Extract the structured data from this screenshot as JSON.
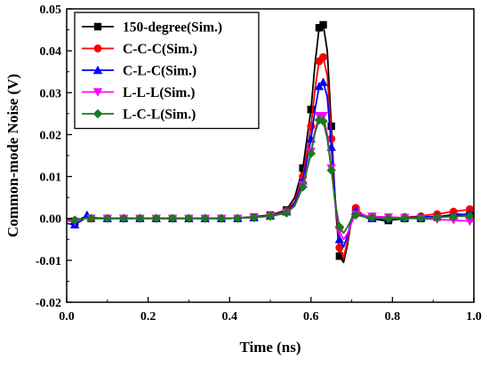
{
  "chart_data": {
    "type": "line",
    "title": "",
    "xlabel": "Time (ns)",
    "ylabel": "Common-mode Noise (V)",
    "xlim": [
      0.0,
      1.0
    ],
    "ylim": [
      -0.02,
      0.05
    ],
    "xticks": [
      0.0,
      0.2,
      0.4,
      0.6,
      0.8,
      1.0
    ],
    "xtick_labels": [
      "0.0",
      "0.2",
      "0.4",
      "0.6",
      "0.8",
      "1.0"
    ],
    "yticks": [
      -0.02,
      -0.01,
      0.0,
      0.01,
      0.02,
      0.03,
      0.04,
      0.05
    ],
    "ytick_labels": [
      "-0.02",
      "-0.01",
      "0.00",
      "0.01",
      "0.02",
      "0.03",
      "0.04",
      "0.05"
    ],
    "grid": false,
    "legend_position": "top-left",
    "series": [
      {
        "name": "150-degree(Sim.)",
        "color": "#000000",
        "marker": "square",
        "points": [
          [
            0.0,
            -0.0005
          ],
          [
            0.02,
            -0.0008
          ],
          [
            0.04,
            0.0002
          ],
          [
            0.06,
            0.0
          ],
          [
            0.1,
            0.0
          ],
          [
            0.2,
            0.0
          ],
          [
            0.3,
            0.0
          ],
          [
            0.4,
            0.0
          ],
          [
            0.45,
            0.0003
          ],
          [
            0.5,
            0.0008
          ],
          [
            0.54,
            0.002
          ],
          [
            0.56,
            0.005
          ],
          [
            0.58,
            0.012
          ],
          [
            0.6,
            0.026
          ],
          [
            0.61,
            0.037
          ],
          [
            0.62,
            0.0455
          ],
          [
            0.63,
            0.0462
          ],
          [
            0.64,
            0.04
          ],
          [
            0.65,
            0.022
          ],
          [
            0.66,
            0.003
          ],
          [
            0.67,
            -0.009
          ],
          [
            0.68,
            -0.0105
          ],
          [
            0.69,
            -0.006
          ],
          [
            0.7,
            0.0
          ],
          [
            0.71,
            0.002
          ],
          [
            0.72,
            0.001
          ],
          [
            0.74,
            0.0
          ],
          [
            0.78,
            -0.0005
          ],
          [
            0.84,
            0.0
          ],
          [
            0.9,
            0.0003
          ],
          [
            0.96,
            0.001
          ],
          [
            1.0,
            0.0008
          ]
        ],
        "marker_points": [
          [
            0.02,
            -0.0008
          ],
          [
            0.06,
            0.0
          ],
          [
            0.1,
            0.0
          ],
          [
            0.14,
            0.0
          ],
          [
            0.18,
            0.0
          ],
          [
            0.22,
            0.0
          ],
          [
            0.26,
            0.0
          ],
          [
            0.3,
            0.0
          ],
          [
            0.34,
            0.0
          ],
          [
            0.38,
            0.0
          ],
          [
            0.42,
            0.0
          ],
          [
            0.46,
            0.0003
          ],
          [
            0.5,
            0.0008
          ],
          [
            0.54,
            0.002
          ],
          [
            0.58,
            0.012
          ],
          [
            0.6,
            0.026
          ],
          [
            0.62,
            0.0455
          ],
          [
            0.63,
            0.0462
          ],
          [
            0.65,
            0.022
          ],
          [
            0.67,
            -0.009
          ],
          [
            0.71,
            0.002
          ],
          [
            0.75,
            0.0
          ],
          [
            0.79,
            -0.0005
          ],
          [
            0.83,
            0.0
          ],
          [
            0.87,
            0.0
          ],
          [
            0.91,
            0.0003
          ],
          [
            0.95,
            0.001
          ],
          [
            0.99,
            0.0008
          ]
        ]
      },
      {
        "name": "C-C-C(Sim.)",
        "color": "#ff0000",
        "marker": "circle",
        "points": [
          [
            0.0,
            -0.0003
          ],
          [
            0.02,
            -0.0005
          ],
          [
            0.04,
            0.0
          ],
          [
            0.1,
            0.0
          ],
          [
            0.2,
            0.0
          ],
          [
            0.3,
            0.0
          ],
          [
            0.4,
            0.0
          ],
          [
            0.45,
            0.0002
          ],
          [
            0.5,
            0.0007
          ],
          [
            0.54,
            0.0018
          ],
          [
            0.56,
            0.004
          ],
          [
            0.58,
            0.01
          ],
          [
            0.6,
            0.022
          ],
          [
            0.61,
            0.031
          ],
          [
            0.62,
            0.0375
          ],
          [
            0.63,
            0.0385
          ],
          [
            0.64,
            0.034
          ],
          [
            0.65,
            0.019
          ],
          [
            0.66,
            0.004
          ],
          [
            0.67,
            -0.007
          ],
          [
            0.68,
            -0.0095
          ],
          [
            0.69,
            -0.005
          ],
          [
            0.7,
            0.0
          ],
          [
            0.71,
            0.0025
          ],
          [
            0.72,
            0.0015
          ],
          [
            0.74,
            0.0
          ],
          [
            0.8,
            0.0
          ],
          [
            0.86,
            0.0005
          ],
          [
            0.92,
            0.0012
          ],
          [
            0.96,
            0.0018
          ],
          [
            1.0,
            0.0022
          ]
        ],
        "marker_points": [
          [
            0.02,
            -0.0005
          ],
          [
            0.06,
            0.0
          ],
          [
            0.1,
            0.0
          ],
          [
            0.14,
            0.0
          ],
          [
            0.18,
            0.0
          ],
          [
            0.22,
            0.0
          ],
          [
            0.26,
            0.0
          ],
          [
            0.3,
            0.0
          ],
          [
            0.34,
            0.0
          ],
          [
            0.38,
            0.0
          ],
          [
            0.42,
            0.0
          ],
          [
            0.46,
            0.0002
          ],
          [
            0.5,
            0.0007
          ],
          [
            0.54,
            0.0018
          ],
          [
            0.58,
            0.01
          ],
          [
            0.6,
            0.022
          ],
          [
            0.62,
            0.0375
          ],
          [
            0.63,
            0.0385
          ],
          [
            0.65,
            0.019
          ],
          [
            0.67,
            -0.007
          ],
          [
            0.71,
            0.0025
          ],
          [
            0.75,
            0.0
          ],
          [
            0.79,
            0.0
          ],
          [
            0.83,
            0.0003
          ],
          [
            0.87,
            0.0005
          ],
          [
            0.91,
            0.001
          ],
          [
            0.95,
            0.0016
          ],
          [
            0.99,
            0.0022
          ]
        ]
      },
      {
        "name": "C-L-C(Sim.)",
        "color": "#0000ff",
        "marker": "triangle-up",
        "points": [
          [
            0.0,
            -0.0012
          ],
          [
            0.02,
            -0.0015
          ],
          [
            0.04,
            -0.0003
          ],
          [
            0.05,
            0.0008
          ],
          [
            0.06,
            0.0002
          ],
          [
            0.1,
            0.0
          ],
          [
            0.2,
            0.0
          ],
          [
            0.3,
            0.0
          ],
          [
            0.4,
            0.0
          ],
          [
            0.45,
            0.0002
          ],
          [
            0.5,
            0.0006
          ],
          [
            0.54,
            0.0016
          ],
          [
            0.56,
            0.0035
          ],
          [
            0.58,
            0.009
          ],
          [
            0.6,
            0.019
          ],
          [
            0.61,
            0.026
          ],
          [
            0.62,
            0.0315
          ],
          [
            0.63,
            0.0325
          ],
          [
            0.64,
            0.029
          ],
          [
            0.65,
            0.017
          ],
          [
            0.66,
            0.004
          ],
          [
            0.67,
            -0.005
          ],
          [
            0.68,
            -0.0068
          ],
          [
            0.69,
            -0.004
          ],
          [
            0.7,
            0.0
          ],
          [
            0.71,
            0.0018
          ],
          [
            0.72,
            0.001
          ],
          [
            0.74,
            0.0
          ],
          [
            0.8,
            0.0
          ],
          [
            0.86,
            0.0003
          ],
          [
            0.92,
            0.0005
          ],
          [
            0.96,
            0.0008
          ],
          [
            1.0,
            0.0012
          ]
        ],
        "marker_points": [
          [
            0.02,
            -0.0015
          ],
          [
            0.05,
            0.0008
          ],
          [
            0.1,
            0.0
          ],
          [
            0.14,
            0.0
          ],
          [
            0.18,
            0.0
          ],
          [
            0.22,
            0.0
          ],
          [
            0.26,
            0.0
          ],
          [
            0.3,
            0.0
          ],
          [
            0.34,
            0.0
          ],
          [
            0.38,
            0.0
          ],
          [
            0.42,
            0.0
          ],
          [
            0.46,
            0.0002
          ],
          [
            0.5,
            0.0006
          ],
          [
            0.54,
            0.0016
          ],
          [
            0.58,
            0.009
          ],
          [
            0.6,
            0.019
          ],
          [
            0.62,
            0.0315
          ],
          [
            0.63,
            0.0325
          ],
          [
            0.65,
            0.017
          ],
          [
            0.67,
            -0.005
          ],
          [
            0.71,
            0.0018
          ],
          [
            0.75,
            0.0
          ],
          [
            0.79,
            0.0
          ],
          [
            0.83,
            0.0002
          ],
          [
            0.87,
            0.0003
          ],
          [
            0.91,
            0.0005
          ],
          [
            0.95,
            0.0007
          ],
          [
            0.99,
            0.0011
          ]
        ]
      },
      {
        "name": "L-L-L(Sim.)",
        "color": "#ff00ff",
        "marker": "triangle-down",
        "points": [
          [
            0.0,
            -0.0005
          ],
          [
            0.02,
            -0.0007
          ],
          [
            0.04,
            0.0
          ],
          [
            0.1,
            0.0
          ],
          [
            0.2,
            0.0
          ],
          [
            0.3,
            0.0
          ],
          [
            0.4,
            0.0
          ],
          [
            0.45,
            0.0002
          ],
          [
            0.5,
            0.0005
          ],
          [
            0.54,
            0.0014
          ],
          [
            0.56,
            0.003
          ],
          [
            0.58,
            0.008
          ],
          [
            0.6,
            0.016
          ],
          [
            0.61,
            0.021
          ],
          [
            0.62,
            0.0245
          ],
          [
            0.63,
            0.0245
          ],
          [
            0.64,
            0.02
          ],
          [
            0.65,
            0.012
          ],
          [
            0.66,
            0.003
          ],
          [
            0.67,
            -0.003
          ],
          [
            0.68,
            -0.005
          ],
          [
            0.69,
            -0.0035
          ],
          [
            0.7,
            -0.001
          ],
          [
            0.71,
            0.001
          ],
          [
            0.72,
            0.0012
          ],
          [
            0.74,
            0.0005
          ],
          [
            0.8,
            0.0003
          ],
          [
            0.86,
            0.0
          ],
          [
            0.92,
            -0.0003
          ],
          [
            0.96,
            -0.0005
          ],
          [
            1.0,
            -0.0007
          ]
        ],
        "marker_points": [
          [
            0.02,
            -0.0007
          ],
          [
            0.06,
            0.0
          ],
          [
            0.1,
            0.0
          ],
          [
            0.14,
            0.0
          ],
          [
            0.18,
            0.0
          ],
          [
            0.22,
            0.0
          ],
          [
            0.26,
            0.0
          ],
          [
            0.3,
            0.0
          ],
          [
            0.34,
            0.0
          ],
          [
            0.38,
            0.0
          ],
          [
            0.42,
            0.0
          ],
          [
            0.46,
            0.0002
          ],
          [
            0.5,
            0.0005
          ],
          [
            0.54,
            0.0014
          ],
          [
            0.58,
            0.008
          ],
          [
            0.6,
            0.016
          ],
          [
            0.62,
            0.0245
          ],
          [
            0.63,
            0.0245
          ],
          [
            0.65,
            0.012
          ],
          [
            0.67,
            -0.003
          ],
          [
            0.71,
            0.001
          ],
          [
            0.75,
            0.0005
          ],
          [
            0.79,
            0.0003
          ],
          [
            0.83,
            0.0002
          ],
          [
            0.87,
            0.0
          ],
          [
            0.91,
            -0.0002
          ],
          [
            0.95,
            -0.0004
          ],
          [
            0.99,
            -0.0007
          ]
        ]
      },
      {
        "name": "L-C-L(Sim.)",
        "color": "#1a7a1a",
        "marker": "diamond",
        "points": [
          [
            0.0,
            -0.0002
          ],
          [
            0.02,
            -0.0004
          ],
          [
            0.04,
            0.0
          ],
          [
            0.1,
            0.0
          ],
          [
            0.2,
            0.0
          ],
          [
            0.3,
            0.0
          ],
          [
            0.4,
            0.0
          ],
          [
            0.45,
            0.0002
          ],
          [
            0.5,
            0.0005
          ],
          [
            0.54,
            0.0013
          ],
          [
            0.56,
            0.003
          ],
          [
            0.58,
            0.0075
          ],
          [
            0.6,
            0.0155
          ],
          [
            0.61,
            0.0205
          ],
          [
            0.62,
            0.0235
          ],
          [
            0.63,
            0.0232
          ],
          [
            0.64,
            0.019
          ],
          [
            0.65,
            0.0115
          ],
          [
            0.66,
            0.0035
          ],
          [
            0.67,
            -0.002
          ],
          [
            0.68,
            -0.0035
          ],
          [
            0.69,
            -0.002
          ],
          [
            0.7,
            0.0
          ],
          [
            0.71,
            0.0008
          ],
          [
            0.72,
            0.0006
          ],
          [
            0.74,
            0.0002
          ],
          [
            0.8,
            0.0
          ],
          [
            0.86,
            0.0
          ],
          [
            0.92,
            0.0003
          ],
          [
            0.96,
            0.0005
          ],
          [
            1.0,
            0.0006
          ]
        ],
        "marker_points": [
          [
            0.02,
            -0.0004
          ],
          [
            0.06,
            0.0
          ],
          [
            0.1,
            0.0
          ],
          [
            0.14,
            0.0
          ],
          [
            0.18,
            0.0
          ],
          [
            0.22,
            0.0
          ],
          [
            0.26,
            0.0
          ],
          [
            0.3,
            0.0
          ],
          [
            0.34,
            0.0
          ],
          [
            0.38,
            0.0
          ],
          [
            0.42,
            0.0
          ],
          [
            0.46,
            0.0002
          ],
          [
            0.5,
            0.0005
          ],
          [
            0.54,
            0.0013
          ],
          [
            0.58,
            0.0075
          ],
          [
            0.6,
            0.0155
          ],
          [
            0.62,
            0.0235
          ],
          [
            0.63,
            0.0232
          ],
          [
            0.65,
            0.0115
          ],
          [
            0.67,
            -0.002
          ],
          [
            0.71,
            0.0008
          ],
          [
            0.75,
            0.0002
          ],
          [
            0.79,
            0.0
          ],
          [
            0.83,
            0.0
          ],
          [
            0.87,
            0.0
          ],
          [
            0.91,
            0.0002
          ],
          [
            0.95,
            0.0004
          ],
          [
            0.99,
            0.0006
          ]
        ]
      }
    ]
  }
}
